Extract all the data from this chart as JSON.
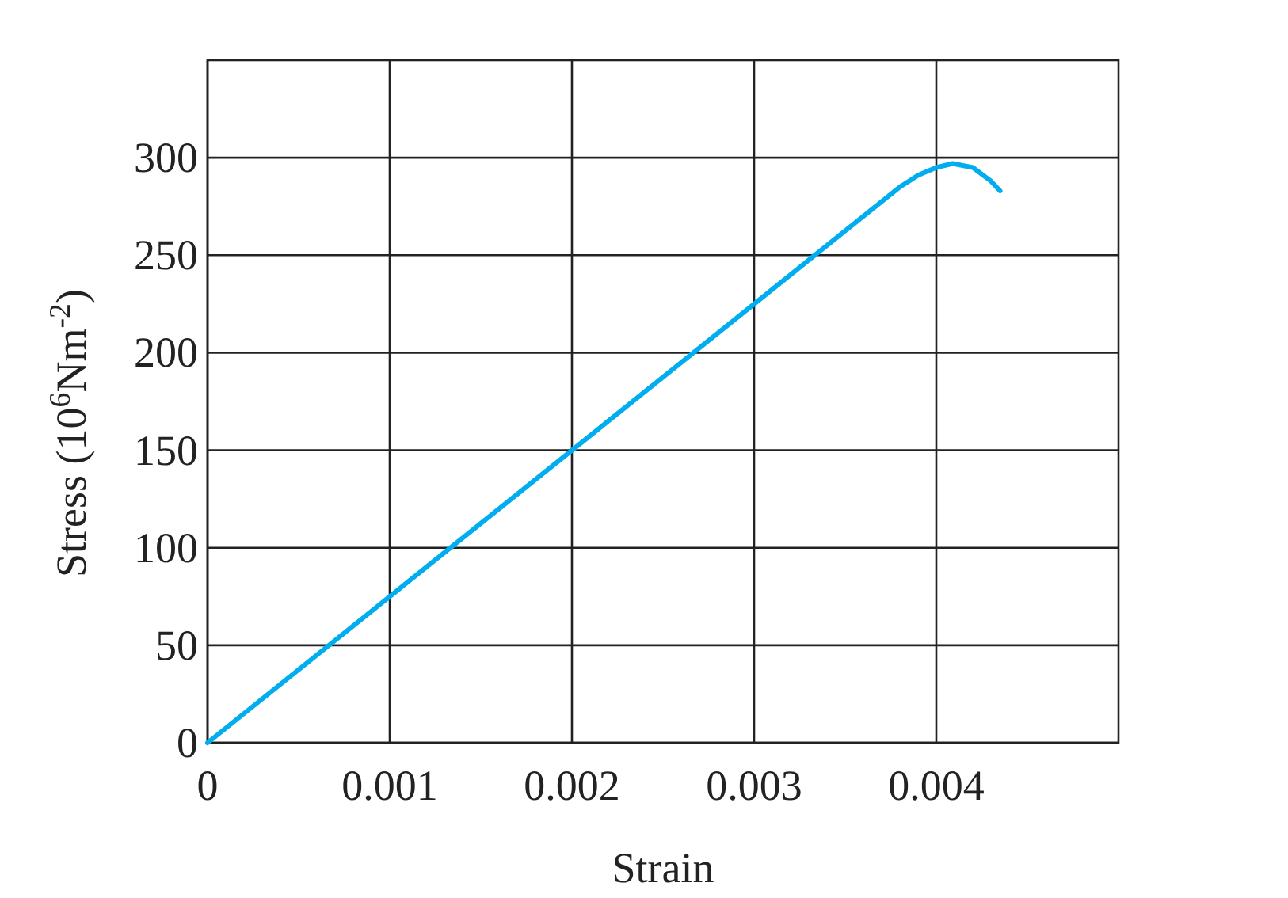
{
  "chart_data": {
    "type": "line",
    "xlabel": "Strain",
    "ylabel": "Stress (10$^{6}$Nm$^{-2}$)",
    "series": [
      {
        "color": "#00aeef",
        "x": [
          0,
          0.001,
          0.002,
          0.003,
          0.0038,
          0.00385,
          0.0039,
          0.004,
          0.00409,
          0.0042,
          0.0043,
          0.00435
        ],
        "values": [
          0,
          75,
          150,
          225,
          285,
          288,
          291,
          295,
          297,
          295,
          288,
          283
        ]
      }
    ],
    "xlim": [
      0,
      0.005
    ],
    "ylim": [
      0,
      350
    ],
    "xticks": [
      0,
      0.001,
      0.002,
      0.003,
      0.004
    ],
    "yticks": [
      0,
      50,
      100,
      150,
      200,
      250,
      300
    ],
    "grid": true,
    "marker": "none",
    "line_style": "solid"
  }
}
